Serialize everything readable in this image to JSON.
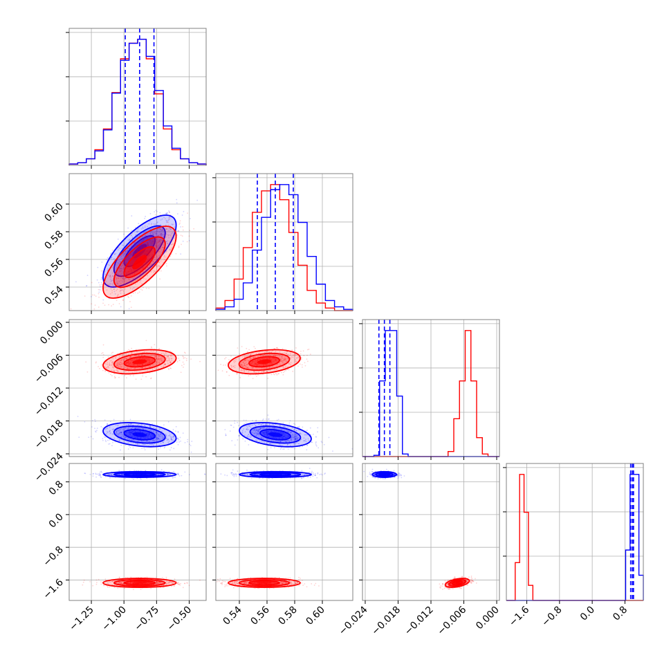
{
  "chart_data": {
    "type": "corner",
    "n_params": 4,
    "grid": true,
    "colors": {
      "series_a": "#0000ff",
      "series_b": "#ff0000",
      "grid": "#b0b0b0",
      "frame": "#808080"
    },
    "series": [
      {
        "color": "#0000ff",
        "mean": [
          -0.88,
          0.566,
          -0.0205,
          0.98
        ],
        "sd": [
          0.14,
          0.013,
          0.0011,
          0.035
        ],
        "corr12": 0.72,
        "corr13": -0.3,
        "corr23": -0.35
      },
      {
        "color": "#ff0000",
        "mean": [
          -0.88,
          0.558,
          -0.0072,
          -1.67
        ],
        "sd": [
          0.14,
          0.013,
          0.0011,
          0.055
        ],
        "corr12": 0.72,
        "corr13": 0.3,
        "corr23": 0.3,
        "corr34": 0.45
      }
    ],
    "quantile_lines": [
      [
        -0.99,
        -0.88,
        -0.77
      ],
      [
        0.553,
        0.566,
        0.579
      ],
      [
        -0.0215,
        -0.0205,
        -0.0195
      ],
      [
        0.94,
        0.98,
        1.01
      ]
    ],
    "ranges": [
      [
        -1.42,
        -0.37
      ],
      [
        0.523,
        0.622
      ],
      [
        -0.0245,
        0.0005
      ],
      [
        -2.1,
        1.25
      ]
    ],
    "diag_hist_a": [
      [
        1,
        2,
        5,
        11,
        27,
        55,
        80,
        93,
        96,
        83,
        57,
        30,
        13,
        5,
        2,
        1
      ],
      [
        1,
        3,
        9,
        22,
        48,
        74,
        96,
        100,
        92,
        70,
        43,
        21,
        8,
        3,
        1
      ],
      [
        0,
        0,
        1,
        60,
        100,
        100,
        48,
        2,
        0,
        0,
        0,
        0,
        0,
        0,
        0,
        0,
        0,
        0,
        0,
        0,
        0,
        0,
        0,
        0
      ],
      [
        0,
        0,
        0,
        0,
        0,
        0,
        0,
        0,
        0,
        0,
        0,
        0,
        0,
        0,
        0,
        0,
        0,
        0,
        0,
        0,
        0,
        0,
        0,
        0,
        0,
        0,
        0,
        40,
        100,
        100,
        20
      ]
    ],
    "diag_hist_b": [
      [
        1,
        2,
        5,
        12,
        28,
        56,
        82,
        94,
        97,
        82,
        55,
        28,
        12,
        5,
        2,
        1
      ],
      [
        2,
        8,
        25,
        50,
        78,
        95,
        100,
        88,
        62,
        36,
        16,
        6,
        2,
        0,
        0
      ],
      [
        0,
        0,
        0,
        0,
        0,
        0,
        0,
        0,
        0,
        0,
        0,
        0,
        0,
        0,
        0,
        4,
        30,
        60,
        100,
        60,
        15,
        2,
        0,
        0
      ],
      [
        0,
        0,
        30,
        100,
        70,
        12,
        0,
        0,
        0,
        0,
        0,
        0,
        0,
        0,
        0,
        0,
        0,
        0,
        0,
        0,
        0,
        0,
        0,
        0,
        0,
        0,
        0,
        0,
        0,
        0,
        0
      ]
    ],
    "ticks": [
      {
        "values": [
          -1.25,
          -1.0,
          -0.75,
          -0.5
        ],
        "labels": [
          "−1.25",
          "−1.00",
          "−0.75",
          "−0.50"
        ]
      },
      {
        "values": [
          0.54,
          0.56,
          0.58,
          0.6
        ],
        "labels": [
          "0.54",
          "0.56",
          "0.58",
          "0.60"
        ]
      },
      {
        "values": [
          -0.024,
          -0.018,
          -0.012,
          -0.006,
          0.0
        ],
        "labels": [
          "−0.024",
          "−0.018",
          "−0.012",
          "−0.006",
          "0.000"
        ]
      },
      {
        "values": [
          -1.6,
          -0.8,
          0.0,
          0.8
        ],
        "labels": [
          "−1.6",
          "−0.8",
          "0.0",
          "0.8"
        ]
      }
    ]
  }
}
